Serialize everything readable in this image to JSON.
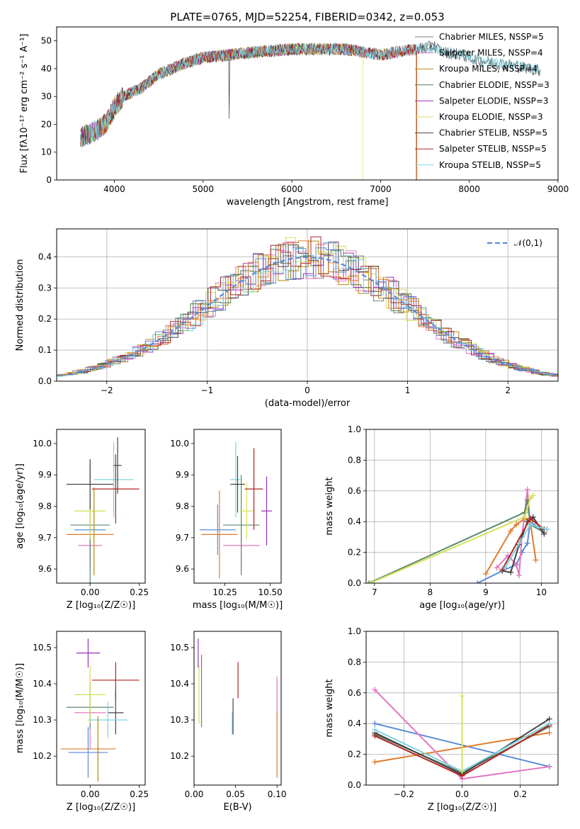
{
  "figure_title": "PLATE=0765, MJD=52254, FIBERID=0342, z=0.053",
  "colors": {
    "Chabrier MILES": "#808080",
    "Salpeter MILES": "#e377c2",
    "Kroupa MILES": "#b8860b",
    "Chabrier ELODIE": "#4f7f4f",
    "Salpeter ELODIE": "#9b30c0",
    "Kroupa ELODIE": "#d4e157",
    "Chabrier STELIB": "#444444",
    "Salpeter STELIB": "#b22222",
    "Kroupa STELIB": "#7fd3e0",
    "blue": "#5b8bd6",
    "orange": "#e07b2a",
    "pink": "#e377c2",
    "green": "#5a8a6a",
    "yellow": "#d4e157",
    "dark": "#444444"
  },
  "chart_data": [
    {
      "id": "spectrum",
      "type": "line",
      "xlabel": "wavelength [Angstrom, rest frame]",
      "ylabel": "Flux [fλ10⁻¹⁷ erg cm⁻² s⁻¹ A⁻¹]",
      "xlim": [
        3350,
        9000
      ],
      "ylim": [
        0,
        55
      ],
      "xticks": [
        4000,
        5000,
        6000,
        7000,
        8000,
        9000
      ],
      "yticks": [
        0,
        10,
        20,
        30,
        40,
        50
      ],
      "legend_position": "top-right",
      "legend": [
        "Chabrier MILES, NSSP=5",
        "Salpeter MILES, NSSP=4",
        "Kroupa MILES, NSSP=4",
        "Chabrier ELODIE, NSSP=3",
        "Salpeter ELODIE, NSSP=3",
        "Kroupa ELODIE, NSSP=3",
        "Chabrier STELIB, NSSP=5",
        "Salpeter STELIB, NSSP=5",
        "Kroupa STELIB, NSSP=5"
      ],
      "continuum": [
        [
          3620,
          15
        ],
        [
          3750,
          17
        ],
        [
          3900,
          20
        ],
        [
          4000,
          26
        ],
        [
          4100,
          30
        ],
        [
          4300,
          33
        ],
        [
          4500,
          38
        ],
        [
          4800,
          42
        ],
        [
          5000,
          44
        ],
        [
          5300,
          45
        ],
        [
          5600,
          46
        ],
        [
          6000,
          47
        ],
        [
          6300,
          47
        ],
        [
          6600,
          47
        ],
        [
          6800,
          46
        ],
        [
          7000,
          45
        ],
        [
          7200,
          46
        ],
        [
          7400,
          47
        ],
        [
          7600,
          48
        ],
        [
          7700,
          46
        ],
        [
          7900,
          45
        ],
        [
          8100,
          43
        ],
        [
          8300,
          42
        ],
        [
          8500,
          41
        ],
        [
          8700,
          40
        ],
        [
          8850,
          39
        ]
      ],
      "series_ranges": [
        [
          3620,
          7620
        ],
        [
          3620,
          7400
        ],
        [
          3620,
          7400
        ],
        [
          3620,
          6800
        ],
        [
          3620,
          6800
        ],
        [
          3620,
          6800
        ],
        [
          3620,
          8800
        ],
        [
          3620,
          7410
        ],
        [
          3620,
          8800
        ]
      ]
    },
    {
      "id": "residuals",
      "type": "bar",
      "xlabel": "(data-model)/error",
      "ylabel": "Normed distribution",
      "xlim": [
        -2.5,
        2.5
      ],
      "ylim": [
        0,
        0.49
      ],
      "xticks": [
        -2,
        -1,
        0,
        1,
        2
      ],
      "yticks": [
        0.0,
        0.1,
        0.2,
        0.3,
        0.4
      ],
      "grid": true,
      "legend": [
        "𝒩(0,1)"
      ],
      "legend_position": "top-right"
    },
    {
      "id": "age_vs_Z",
      "type": "scatter",
      "xlabel": "Z [log₁₀(Z/Z☉)]",
      "ylabel": "age  [log₁₀(age/yr)]",
      "xlim": [
        -0.17,
        0.28
      ],
      "ylim": [
        9.555,
        10.045
      ],
      "xticks": [
        0.0,
        0.25
      ],
      "yticks": [
        9.6,
        9.7,
        9.8,
        9.9,
        10.0
      ],
      "points": [
        {
          "c": "orange",
          "x": 0.0,
          "xerr": 0.12,
          "y": 9.71,
          "yerr": 0.09
        },
        {
          "c": "blue",
          "x": 0.0,
          "xerr": 0.08,
          "y": 9.725,
          "yerr": 0.1
        },
        {
          "c": "pink",
          "x": 0.0,
          "xerr": 0.06,
          "y": 9.675,
          "yerr": 0.07
        },
        {
          "c": "green",
          "x": 0.0,
          "xerr": 0.1,
          "y": 9.74,
          "yerr": 0.19
        },
        {
          "c": "yellow",
          "x": 0.0,
          "xerr": 0.08,
          "y": 9.785,
          "yerr": 0.09
        },
        {
          "c": "dark",
          "x": 0.0,
          "xerr": 0.12,
          "y": 9.87,
          "yerr": 0.08
        },
        {
          "c": "Kroupa STELIB",
          "x": 0.12,
          "xerr": 0.1,
          "y": 9.885,
          "yerr": 0.12
        },
        {
          "c": "dark",
          "x": 0.14,
          "xerr": 0.02,
          "y": 9.93,
          "yerr": 0.09
        },
        {
          "c": "Salpeter STELIB",
          "x": 0.13,
          "xerr": 0.12,
          "y": 9.855,
          "yerr": 0.11
        },
        {
          "c": "Kroupa MILES",
          "x": 0.02,
          "xerr": 0.0,
          "y": 9.72,
          "yerr": 0.14
        }
      ]
    },
    {
      "id": "age_vs_mass",
      "type": "scatter",
      "xlabel": "mass [log₁₀(M/M☉)]",
      "ylabel": "",
      "xlim": [
        10.08,
        10.56
      ],
      "ylim": [
        9.555,
        10.045
      ],
      "xticks": [
        10.25,
        10.5
      ],
      "yticks": [
        9.6,
        9.7,
        9.8,
        9.9,
        10.0
      ],
      "points": [
        {
          "c": "blue",
          "x": 10.21,
          "xerr": 0.1,
          "y": 9.725,
          "yerr": 0.08
        },
        {
          "c": "orange",
          "x": 10.22,
          "xerr": 0.1,
          "y": 9.71,
          "yerr": 0.14
        },
        {
          "c": "pink",
          "x": 10.34,
          "xerr": 0.1,
          "y": 9.675,
          "yerr": 0.08
        },
        {
          "c": "green",
          "x": 10.34,
          "xerr": 0.1,
          "y": 9.74,
          "yerr": 0.16
        },
        {
          "c": "yellow",
          "x": 10.37,
          "xerr": 0.04,
          "y": 9.785,
          "yerr": 0.09
        },
        {
          "c": "Kroupa STELIB",
          "x": 10.31,
          "xerr": 0.03,
          "y": 9.885,
          "yerr": 0.12
        },
        {
          "c": "dark",
          "x": 10.32,
          "xerr": 0.04,
          "y": 9.87,
          "yerr": 0.09
        },
        {
          "c": "Salpeter STELIB",
          "x": 10.41,
          "xerr": 0.05,
          "y": 9.855,
          "yerr": 0.13
        },
        {
          "c": "Salpeter ELODIE",
          "x": 10.48,
          "xerr": 0.03,
          "y": 9.785,
          "yerr": 0.11
        }
      ]
    },
    {
      "id": "mass_weight_vs_age",
      "type": "line",
      "xlabel": "age  [log₁₀(age/yr)]",
      "ylabel": "mass weight",
      "xlim": [
        6.85,
        10.3
      ],
      "ylim": [
        0,
        1
      ],
      "xticks": [
        7,
        8,
        9,
        10
      ],
      "yticks": [
        0.0,
        0.2,
        0.4,
        0.6,
        0.8,
        1.0
      ],
      "grid": true,
      "series": [
        {
          "c": "blue",
          "x": [
            8.85,
            9.3,
            9.55,
            9.65,
            9.75,
            9.8,
            10.0,
            10.1
          ],
          "y": [
            0.0,
            0.08,
            0.12,
            0.2,
            0.26,
            0.4,
            0.35,
            0.35
          ]
        },
        {
          "c": "orange",
          "x": [
            9.0,
            9.45,
            9.55,
            9.7,
            9.8,
            9.9
          ],
          "y": [
            0.06,
            0.34,
            0.38,
            0.42,
            0.4,
            0.15
          ]
        },
        {
          "c": "pink",
          "x": [
            9.2,
            9.4,
            9.55,
            9.6,
            9.65,
            9.75,
            9.8
          ],
          "y": [
            0.1,
            0.18,
            0.12,
            0.05,
            0.3,
            0.61,
            0.38
          ]
        },
        {
          "c": "green",
          "x": [
            6.9,
            9.7,
            9.75,
            9.8,
            10.05
          ],
          "y": [
            0.0,
            0.46,
            0.54,
            0.38,
            0.33
          ]
        },
        {
          "c": "yellow",
          "x": [
            6.92,
            9.7,
            9.8,
            9.85
          ],
          "y": [
            0.0,
            0.43,
            0.55,
            0.57
          ]
        },
        {
          "c": "dark",
          "x": [
            9.3,
            9.45,
            9.6,
            9.75,
            9.85,
            10.05
          ],
          "y": [
            0.08,
            0.07,
            0.25,
            0.4,
            0.43,
            0.32
          ]
        },
        {
          "c": "Salpeter STELIB",
          "x": [
            9.3,
            9.8,
            10.05
          ],
          "y": [
            0.09,
            0.42,
            0.35
          ]
        },
        {
          "c": "Kroupa STELIB",
          "x": [
            9.35,
            9.8,
            10.1
          ],
          "y": [
            0.1,
            0.38,
            0.35
          ]
        }
      ]
    },
    {
      "id": "mass_vs_Z",
      "type": "scatter",
      "xlabel": "Z [log₁₀(Z/Z☉)]",
      "ylabel": "mass [log₁₀(M/M☉)]",
      "xlim": [
        -0.17,
        0.28
      ],
      "ylim": [
        10.12,
        10.545
      ],
      "xticks": [
        0.0,
        0.25
      ],
      "yticks": [
        10.2,
        10.3,
        10.4,
        10.5
      ],
      "points": [
        {
          "c": "orange",
          "x": -0.01,
          "xerr": 0.14,
          "y": 10.22,
          "yerr": 0.0
        },
        {
          "c": "blue",
          "x": -0.01,
          "xerr": 0.1,
          "y": 10.21,
          "yerr": 0.07
        },
        {
          "c": "pink",
          "x": 0.0,
          "xerr": 0.08,
          "y": 10.32,
          "yerr": 0.1
        },
        {
          "c": "green",
          "x": 0.0,
          "xerr": 0.12,
          "y": 10.335,
          "yerr": 0.06
        },
        {
          "c": "yellow",
          "x": 0.0,
          "xerr": 0.08,
          "y": 10.37,
          "yerr": 0.08
        },
        {
          "c": "Salpeter ELODIE",
          "x": -0.01,
          "xerr": 0.06,
          "y": 10.485,
          "yerr": 0.04
        },
        {
          "c": "Salpeter STELIB",
          "x": 0.13,
          "xerr": 0.12,
          "y": 10.41,
          "yerr": 0.05
        },
        {
          "c": "dark",
          "x": 0.13,
          "xerr": 0.04,
          "y": 10.32,
          "yerr": 0.06
        },
        {
          "c": "Kroupa STELIB",
          "x": 0.09,
          "xerr": 0.1,
          "y": 10.3,
          "yerr": 0.05
        },
        {
          "c": "Kroupa MILES",
          "x": 0.04,
          "xerr": 0.0,
          "y": 10.22,
          "yerr": 0.09
        }
      ]
    },
    {
      "id": "mass_vs_ebv",
      "type": "scatter",
      "xlabel": "E(B-V)",
      "ylabel": "",
      "xlim": [
        0.0,
        0.105
      ],
      "ylim": [
        10.12,
        10.545
      ],
      "xticks": [
        0.0,
        0.05,
        0.1
      ],
      "yticks": [
        10.2,
        10.3,
        10.4,
        10.5
      ],
      "points": [
        {
          "c": "Salpeter ELODIE",
          "x": 0.005,
          "xerr": 0.0,
          "y": 10.485,
          "yerr": 0.04
        },
        {
          "c": "yellow",
          "x": 0.006,
          "xerr": 0.0,
          "y": 10.37,
          "yerr": 0.08
        },
        {
          "c": "green",
          "x": 0.009,
          "xerr": 0.0,
          "y": 10.38,
          "yerr": 0.1
        },
        {
          "c": "Salpeter STELIB",
          "x": 0.053,
          "xerr": 0.0,
          "y": 10.41,
          "yerr": 0.05
        },
        {
          "c": "dark",
          "x": 0.047,
          "xerr": 0.0,
          "y": 10.31,
          "yerr": 0.05
        },
        {
          "c": "Kroupa STELIB",
          "x": 0.046,
          "xerr": 0.0,
          "y": 10.29,
          "yerr": 0.03
        },
        {
          "c": "pink",
          "x": 0.1,
          "xerr": 0.0,
          "y": 10.36,
          "yerr": 0.06
        },
        {
          "c": "orange",
          "x": 0.1,
          "xerr": 0.0,
          "y": 10.23,
          "yerr": 0.09
        }
      ]
    },
    {
      "id": "mass_weight_vs_Z",
      "type": "line",
      "xlabel": "Z [log₁₀(Z/Z☉)]",
      "ylabel": "mass weight",
      "xlim": [
        -0.33,
        0.33
      ],
      "ylim": [
        0,
        1
      ],
      "xticks": [
        -0.2,
        0.0,
        0.2
      ],
      "yticks": [
        0.0,
        0.2,
        0.4,
        0.6,
        0.8,
        1.0
      ],
      "grid": true,
      "series": [
        {
          "c": "blue",
          "x": [
            -0.3,
            0.3
          ],
          "y": [
            0.4,
            0.12
          ]
        },
        {
          "c": "orange",
          "x": [
            -0.3,
            0.3
          ],
          "y": [
            0.15,
            0.34
          ]
        },
        {
          "c": "pink",
          "x": [
            -0.3,
            0.0,
            0.3
          ],
          "y": [
            0.62,
            0.04,
            0.12
          ]
        },
        {
          "c": "green",
          "x": [
            -0.3,
            0.0,
            0.3
          ],
          "y": [
            0.33,
            0.08,
            0.38
          ]
        },
        {
          "c": "dark",
          "x": [
            -0.3,
            0.0,
            0.3
          ],
          "y": [
            0.34,
            0.07,
            0.43
          ]
        },
        {
          "c": "Salpeter STELIB",
          "x": [
            -0.3,
            0.0,
            0.3
          ],
          "y": [
            0.32,
            0.06,
            0.39
          ]
        },
        {
          "c": "Kroupa STELIB",
          "x": [
            -0.3,
            0.0,
            0.3
          ],
          "y": [
            0.36,
            0.09,
            0.4
          ]
        },
        {
          "c": "yellow",
          "x": [
            0.0,
            0.0
          ],
          "y": [
            0.09,
            0.58
          ]
        }
      ]
    }
  ]
}
